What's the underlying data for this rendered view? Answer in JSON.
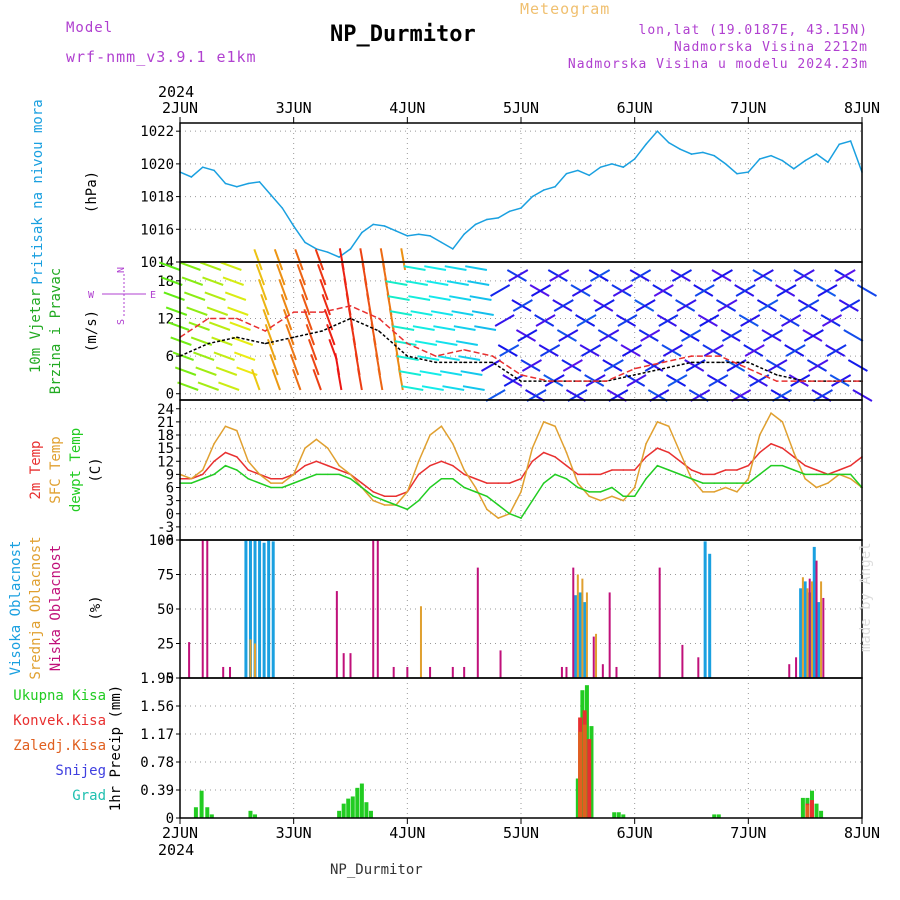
{
  "header": {
    "title": "NP_Durmitor",
    "meteogram_label": "Meteogram",
    "model_label": "Model",
    "model_name": "wrf-nmm_v3.9.1 e1km",
    "lonlat": "lon,lat (19.0187E, 43.15N)",
    "elevation": "Nadmorska Visina 2212m",
    "model_elevation": "Nadmorska Visina u modelu 2024.23m",
    "year_top": "2024",
    "year_bottom": "2024",
    "footer": "NP_Durmitor",
    "credit": "made by Angel"
  },
  "colors": {
    "pressure": "#1aa0e0",
    "temp2m": "#e83030",
    "sfc": "#e0a030",
    "dewpt": "#22cc22",
    "wind_speed": "#000000",
    "gust": "#e83030",
    "cloud_high": "#1aa0e0",
    "cloud_mid": "#e0a030",
    "cloud_low": "#c0107a",
    "precip_total": "#22cc22",
    "precip_conv": "#e83030",
    "precip_frz": "#e06020",
    "snow": "#4040e0",
    "grad": "#20c0b0"
  },
  "date_ticks": [
    "2JUN",
    "3JUN",
    "4JUN",
    "5JUN",
    "6JUN",
    "7JUN",
    "8JUN"
  ],
  "panel_labels": {
    "pressure": {
      "name": "Pritisak na nivou mora",
      "unit": "(hPa)"
    },
    "wind": {
      "name1": "10m Vjetar",
      "name2": "Brzina i Pravac",
      "unit": "(m/s)",
      "compass_w": "W",
      "compass_e": "E",
      "compass_n": "N",
      "compass_s": "S"
    },
    "temp": {
      "t2m": "2m Temp",
      "sfc": "SFC Temp",
      "dew": "dewpt Temp",
      "unit": "(C)"
    },
    "cloud": {
      "high": "Visoka Oblacnost",
      "mid": "Srednja Oblacnost",
      "low": "Niska Oblacnost",
      "unit": "(%)"
    },
    "precip": {
      "total": "Ukupna Kisa",
      "conv": "Konvek.Kisa",
      "frz": "Zaledj.Kisa",
      "snow": "Snijeg",
      "grad": "Grad",
      "unit": "1hr Precip (mm)"
    }
  },
  "chart_data": [
    {
      "type": "line",
      "panel": "pressure",
      "x_unit": "days since 2JUN 00UTC",
      "xlim": [
        0,
        6
      ],
      "ylim": [
        1014,
        1022.5
      ],
      "yticks": [
        1014,
        1016,
        1018,
        1020,
        1022
      ],
      "grid": true,
      "series": [
        {
          "name": "Pritisak na nivou mora",
          "x": [
            0,
            0.1,
            0.2,
            0.3,
            0.4,
            0.5,
            0.6,
            0.7,
            0.8,
            0.9,
            1.0,
            1.1,
            1.2,
            1.3,
            1.4,
            1.5,
            1.6,
            1.7,
            1.8,
            1.9,
            2.0,
            2.1,
            2.2,
            2.3,
            2.4,
            2.5,
            2.6,
            2.7,
            2.8,
            2.9,
            3.0,
            3.1,
            3.2,
            3.3,
            3.4,
            3.5,
            3.6,
            3.7,
            3.8,
            3.9,
            4.0,
            4.1,
            4.2,
            4.3,
            4.4,
            4.5,
            4.6,
            4.7,
            4.8,
            4.9,
            5.0,
            5.1,
            5.2,
            5.3,
            5.4,
            5.5,
            5.6,
            5.7,
            5.8,
            5.9,
            6.0
          ],
          "values": [
            1019.5,
            1019.2,
            1019.8,
            1019.6,
            1018.8,
            1018.6,
            1018.8,
            1018.9,
            1018.1,
            1017.3,
            1016.2,
            1015.2,
            1014.8,
            1014.6,
            1014.3,
            1014.8,
            1015.8,
            1016.3,
            1016.2,
            1015.9,
            1015.6,
            1015.7,
            1015.6,
            1015.2,
            1014.8,
            1015.7,
            1016.3,
            1016.6,
            1016.7,
            1017.1,
            1017.3,
            1018.0,
            1018.4,
            1018.6,
            1019.4,
            1019.6,
            1019.3,
            1019.8,
            1020.0,
            1019.8,
            1020.3,
            1021.2,
            1022.0,
            1021.3,
            1020.9,
            1020.6,
            1020.7,
            1020.5,
            1020.0,
            1019.4,
            1019.5,
            1020.3,
            1020.5,
            1020.2,
            1019.7,
            1020.2,
            1020.6,
            1020.1,
            1021.2,
            1021.4,
            1019.5
          ]
        }
      ]
    },
    {
      "type": "line",
      "panel": "wind",
      "x_unit": "days since 2JUN 00UTC",
      "xlim": [
        0,
        6
      ],
      "ylim": [
        -1,
        21
      ],
      "yticks": [
        0,
        6,
        12,
        18
      ],
      "grid": true,
      "barbs_note": "dense multicoloured wind direction arrows along the panel",
      "series": [
        {
          "name": "Brzina",
          "x": [
            0,
            0.25,
            0.5,
            0.75,
            1.0,
            1.25,
            1.5,
            1.75,
            2.0,
            2.25,
            2.5,
            2.75,
            3.0,
            3.25,
            3.5,
            3.75,
            4.0,
            4.25,
            4.5,
            4.75,
            5.0,
            5.25,
            5.5,
            5.75,
            6.0
          ],
          "values": [
            6,
            8,
            9,
            8,
            9,
            10,
            12,
            10,
            6,
            5,
            5,
            5,
            2,
            2,
            2,
            2,
            3,
            4,
            5,
            5,
            5,
            3,
            2,
            2,
            2
          ]
        },
        {
          "name": "Udar",
          "x": [
            0,
            0.25,
            0.5,
            0.75,
            1.0,
            1.25,
            1.5,
            1.75,
            2.0,
            2.25,
            2.5,
            2.75,
            3.0,
            3.25,
            3.5,
            3.75,
            4.0,
            4.25,
            4.5,
            4.75,
            5.0,
            5.25,
            5.5,
            5.75,
            6.0
          ],
          "values": [
            9,
            12,
            12,
            10,
            13,
            13,
            14,
            12,
            8,
            6,
            7,
            6,
            3,
            2,
            2,
            2,
            4,
            5,
            6,
            6,
            4,
            2,
            2,
            2,
            2
          ]
        }
      ]
    },
    {
      "type": "line",
      "panel": "temperature",
      "x_unit": "days since 2JUN 00UTC",
      "xlim": [
        0,
        6
      ],
      "ylim": [
        -6,
        26
      ],
      "yticks": [
        -6,
        -3,
        0,
        3,
        6,
        9,
        12,
        15,
        18,
        21,
        24
      ],
      "grid": true,
      "series": [
        {
          "name": "2m Temp",
          "x": [
            0,
            0.1,
            0.2,
            0.3,
            0.4,
            0.5,
            0.6,
            0.7,
            0.8,
            0.9,
            1.0,
            1.1,
            1.2,
            1.3,
            1.4,
            1.5,
            1.6,
            1.7,
            1.8,
            1.9,
            2.0,
            2.1,
            2.2,
            2.3,
            2.4,
            2.5,
            2.6,
            2.7,
            2.8,
            2.9,
            3.0,
            3.1,
            3.2,
            3.3,
            3.4,
            3.5,
            3.6,
            3.7,
            3.8,
            3.9,
            4.0,
            4.1,
            4.2,
            4.3,
            4.4,
            4.5,
            4.6,
            4.7,
            4.8,
            4.9,
            5.0,
            5.1,
            5.2,
            5.3,
            5.4,
            5.5,
            5.6,
            5.7,
            5.8,
            5.9,
            6.0
          ],
          "values": [
            8,
            8,
            9,
            12,
            14,
            13,
            10,
            9,
            8,
            8,
            9,
            11,
            12,
            11,
            10,
            9,
            7,
            5,
            4,
            4,
            5,
            9,
            11,
            12,
            11,
            9,
            8,
            7,
            7,
            7,
            8,
            12,
            14,
            13,
            11,
            9,
            9,
            9,
            10,
            10,
            10,
            13,
            15,
            14,
            12,
            10,
            9,
            9,
            10,
            10,
            11,
            14,
            16,
            15,
            13,
            11,
            10,
            9,
            10,
            11,
            13
          ]
        },
        {
          "name": "SFC Temp",
          "x": [
            0,
            0.1,
            0.2,
            0.3,
            0.4,
            0.5,
            0.6,
            0.7,
            0.8,
            0.9,
            1.0,
            1.1,
            1.2,
            1.3,
            1.4,
            1.5,
            1.6,
            1.7,
            1.8,
            1.9,
            2.0,
            2.1,
            2.2,
            2.3,
            2.4,
            2.5,
            2.6,
            2.7,
            2.8,
            2.9,
            3.0,
            3.1,
            3.2,
            3.3,
            3.4,
            3.5,
            3.6,
            3.7,
            3.8,
            3.9,
            4.0,
            4.1,
            4.2,
            4.3,
            4.4,
            4.5,
            4.6,
            4.7,
            4.8,
            4.9,
            5.0,
            5.1,
            5.2,
            5.3,
            5.4,
            5.5,
            5.6,
            5.7,
            5.8,
            5.9,
            6.0
          ],
          "values": [
            9,
            8,
            10,
            16,
            20,
            19,
            12,
            9,
            7,
            7,
            9,
            15,
            17,
            15,
            11,
            9,
            6,
            3,
            2,
            2,
            5,
            12,
            18,
            20,
            16,
            10,
            6,
            1,
            -1,
            0,
            5,
            15,
            21,
            20,
            14,
            7,
            4,
            3,
            4,
            3,
            6,
            16,
            21,
            20,
            14,
            8,
            5,
            5,
            6,
            5,
            8,
            18,
            23,
            21,
            14,
            8,
            6,
            7,
            9,
            8,
            6
          ]
        },
        {
          "name": "dewpt Temp",
          "x": [
            0,
            0.1,
            0.2,
            0.3,
            0.4,
            0.5,
            0.6,
            0.7,
            0.8,
            0.9,
            1.0,
            1.1,
            1.2,
            1.3,
            1.4,
            1.5,
            1.6,
            1.7,
            1.8,
            1.9,
            2.0,
            2.1,
            2.2,
            2.3,
            2.4,
            2.5,
            2.6,
            2.7,
            2.8,
            2.9,
            3.0,
            3.1,
            3.2,
            3.3,
            3.4,
            3.5,
            3.6,
            3.7,
            3.8,
            3.9,
            4.0,
            4.1,
            4.2,
            4.3,
            4.4,
            4.5,
            4.6,
            4.7,
            4.8,
            4.9,
            5.0,
            5.1,
            5.2,
            5.3,
            5.4,
            5.5,
            5.6,
            5.7,
            5.8,
            5.9,
            6.0
          ],
          "values": [
            7,
            7,
            8,
            9,
            11,
            10,
            8,
            7,
            6,
            6,
            7,
            8,
            9,
            9,
            9,
            8,
            6,
            4,
            3,
            2,
            1,
            3,
            6,
            8,
            8,
            6,
            5,
            4,
            2,
            0,
            -1,
            3,
            7,
            9,
            8,
            6,
            5,
            5,
            6,
            4,
            4,
            8,
            11,
            10,
            9,
            8,
            7,
            7,
            7,
            7,
            7,
            9,
            11,
            11,
            10,
            9,
            9,
            9,
            9,
            9,
            6
          ]
        }
      ]
    },
    {
      "type": "bar",
      "panel": "cloud",
      "x_unit": "days since 2JUN 00UTC",
      "xlim": [
        0,
        6
      ],
      "ylim": [
        0,
        100
      ],
      "yticks": [
        0,
        25,
        50,
        75,
        100
      ],
      "grid": true,
      "series": [
        {
          "name": "Visoka Oblacnost",
          "x": [
            0.58,
            0.62,
            0.66,
            0.7,
            0.74,
            0.78,
            0.82,
            3.48,
            3.52,
            3.56,
            4.62,
            4.66,
            5.46,
            5.5,
            5.54,
            5.58,
            5.62
          ],
          "values": [
            100,
            100,
            100,
            100,
            98,
            100,
            99,
            60,
            62,
            55,
            99,
            90,
            65,
            70,
            62,
            95,
            55
          ]
        },
        {
          "name": "Srednja Oblacnost",
          "x": [
            0.62,
            0.66,
            2.12,
            3.5,
            3.54,
            3.58,
            3.66,
            5.48,
            5.52,
            5.56,
            5.6,
            5.64
          ],
          "values": [
            28,
            25,
            52,
            75,
            72,
            62,
            32,
            73,
            65,
            70,
            85,
            70
          ]
        },
        {
          "name": "Niska Oblacnost",
          "x": [
            0.08,
            0.2,
            0.24,
            0.38,
            0.44,
            1.38,
            1.44,
            1.5,
            1.7,
            1.74,
            1.88,
            2.0,
            2.2,
            2.4,
            2.5,
            2.62,
            2.82,
            3.36,
            3.4,
            3.46,
            3.64,
            3.72,
            3.78,
            3.84,
            4.22,
            4.42,
            4.56,
            5.36,
            5.42,
            5.54,
            5.6,
            5.66
          ],
          "values": [
            26,
            100,
            100,
            8,
            8,
            63,
            18,
            18,
            100,
            100,
            8,
            8,
            8,
            8,
            8,
            80,
            20,
            8,
            8,
            80,
            30,
            10,
            62,
            8,
            80,
            24,
            15,
            10,
            15,
            72,
            85,
            58
          ]
        }
      ]
    },
    {
      "type": "bar",
      "panel": "precip",
      "x_unit": "days since 2JUN 00UTC",
      "xlim": [
        0,
        6
      ],
      "ylim": [
        0,
        1.95
      ],
      "yticks": [
        0,
        0.39,
        0.78,
        1.17,
        1.56,
        1.95
      ],
      "grid": true,
      "series": [
        {
          "name": "Ukupna Kisa",
          "x": [
            0.14,
            0.19,
            0.24,
            0.28,
            0.62,
            0.66,
            1.4,
            1.44,
            1.48,
            1.52,
            1.56,
            1.6,
            1.64,
            1.68,
            3.5,
            3.54,
            3.58,
            3.62,
            3.82,
            3.86,
            3.9,
            4.7,
            4.74,
            5.48,
            5.52,
            5.56,
            5.6,
            5.64
          ],
          "values": [
            0.15,
            0.38,
            0.15,
            0.05,
            0.1,
            0.05,
            0.1,
            0.2,
            0.27,
            0.3,
            0.42,
            0.48,
            0.22,
            0.1,
            0.55,
            1.78,
            1.85,
            1.28,
            0.08,
            0.08,
            0.05,
            0.05,
            0.05,
            0.28,
            0.28,
            0.38,
            0.2,
            0.1
          ]
        },
        {
          "name": "Konvek.Kisa",
          "x": [
            3.52,
            3.56,
            3.6,
            5.52,
            5.56
          ],
          "values": [
            1.4,
            1.5,
            1.1,
            0.2,
            0.25
          ]
        },
        {
          "name": "Zaledj.Kisa",
          "x": [
            3.52,
            3.56,
            5.52
          ],
          "values": [
            1.2,
            1.3,
            0.18
          ]
        }
      ]
    }
  ]
}
